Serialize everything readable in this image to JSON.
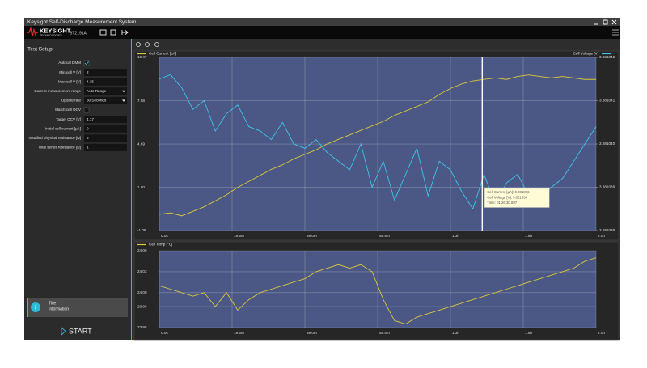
{
  "window": {
    "title": "Keysight Self-Discharge Measurement System",
    "logo": "KEYSIGHT",
    "logo_sub": "TECHNOLOGIES",
    "model": "BT2191A"
  },
  "setup": {
    "title": "Test Setup",
    "fields": [
      {
        "label": "Autocal DMM",
        "checked": true
      },
      {
        "label": "Min cell V [V]",
        "value": 2
      },
      {
        "label": "Max cell V [V]",
        "value": 4.35
      },
      {
        "label": "Current measurement range",
        "value": "Auto Range",
        "dropdown": true
      },
      {
        "label": "Update rate",
        "value": "60 Seconds",
        "dropdown": true
      },
      {
        "label": "Match cell OCV",
        "checked": false
      },
      {
        "label": "Target OCV [V]",
        "value": 4.17
      },
      {
        "label": "Initial cell current [µA]",
        "value": 0
      },
      {
        "label": "Installed physical resistance [Ω]",
        "value": 5
      },
      {
        "label": "Total series resistance [Ω]",
        "value": 1
      }
    ]
  },
  "info": {
    "title": "Title",
    "text": "Information"
  },
  "start_button": "START",
  "chart_data": [
    {
      "type": "line",
      "x": [
        0,
        3,
        6,
        9,
        12,
        15,
        18,
        21,
        24,
        27,
        30,
        33,
        36,
        39,
        42,
        45,
        48,
        51,
        54,
        57,
        60,
        63,
        66,
        69,
        72,
        75,
        78,
        81,
        84,
        87,
        90,
        93,
        96,
        99,
        102,
        105,
        108,
        111,
        114,
        117
      ],
      "xlim": [
        0,
        117
      ],
      "xticks": [
        {
          "value": 0,
          "label": "0.0s"
        },
        {
          "value": 19.5,
          "label": "19.5m"
        },
        {
          "value": 39,
          "label": "39.0m"
        },
        {
          "value": 58.5,
          "label": "58.5m"
        },
        {
          "value": 78,
          "label": "1.3h"
        },
        {
          "value": 97.5,
          "label": "1.6h"
        },
        {
          "value": 117,
          "label": "2.0h"
        }
      ],
      "ylim": [
        -1.08,
        10.47
      ],
      "yticks": [
        10.47,
        7.58,
        4.69,
        {
          "value": 1.8,
          "label": "1.80"
        },
        -1.08
      ],
      "y2lim": [
        3.881038,
        3.881042
      ],
      "y2ticks": [
        3.881042,
        3.881041,
        {
          "value": 3.88104,
          "label": "3.881040"
        },
        3.881039,
        3.881038
      ],
      "grid": true,
      "series": [
        {
          "name": "Cell Current [µA]",
          "color": "#d8c83a",
          "values": [
            0,
            0.1,
            -0.1,
            0.2,
            0.5,
            0.9,
            1.3,
            1.8,
            2.2,
            2.6,
            3.0,
            3.3,
            3.7,
            4.0,
            4.3,
            4.7,
            5.0,
            5.3,
            5.6,
            5.9,
            6.2,
            6.6,
            6.9,
            7.2,
            7.5,
            8.0,
            8.4,
            8.7,
            8.9,
            9.0,
            9.1,
            9.0,
            9.2,
            9.3,
            9.2,
            9.1,
            9.2,
            9.1,
            9.0,
            9.0
          ]
        },
        {
          "name": "Cell Voltage [V]",
          "color": "#3cc6e6",
          "axis": "y2",
          "values": [
            3.8810415,
            3.8810416,
            3.8810413,
            3.8810408,
            3.881041,
            3.8810403,
            3.8810407,
            3.8810409,
            3.8810404,
            3.8810403,
            3.8810401,
            3.8810405,
            3.88104,
            3.8810399,
            3.8810401,
            3.8810398,
            3.8810396,
            3.8810394,
            3.88104,
            3.881039,
            3.8810396,
            3.8810387,
            3.8810393,
            3.8810399,
            3.8810388,
            3.8810396,
            3.8810394,
            3.8810389,
            3.8810385,
            3.8810393,
            3.8810386,
            3.8810391,
            3.8810393,
            3.8810388,
            3.8810387,
            3.881039,
            3.8810392,
            3.8810396,
            3.88104,
            3.8810404
          ]
        }
      ],
      "cursor_x": 86.515,
      "annotations": [
        "Cell Current [µA]: 9.081896",
        "Cell Voltage [V]: 3.881039",
        "Time: 01:26:30.897"
      ]
    },
    {
      "type": "line",
      "x": [
        0,
        3,
        6,
        9,
        12,
        15,
        18,
        21,
        24,
        27,
        30,
        33,
        36,
        39,
        42,
        45,
        48,
        51,
        54,
        57,
        60,
        63,
        66,
        69,
        72,
        75,
        78,
        81,
        84,
        87,
        90,
        93,
        96,
        99,
        102,
        105,
        108,
        111,
        114,
        117
      ],
      "xlim": [
        0,
        117
      ],
      "xticks": [
        {
          "value": 0,
          "label": "0.0s"
        },
        {
          "value": 19.5,
          "label": "19.5m"
        },
        {
          "value": 39,
          "label": "39.0m"
        },
        {
          "value": 58.5,
          "label": "58.5m"
        },
        {
          "value": 78,
          "label": "1.3h"
        },
        {
          "value": 97.5,
          "label": "1.6h"
        },
        {
          "value": 117,
          "label": "2.0h"
        }
      ],
      "ylim": [
        23.95,
        24.06
      ],
      "yticks": [
        24.06,
        24.03,
        {
          "value": 24,
          "label": "24.00"
        },
        23.98,
        23.95
      ],
      "grid": true,
      "series": [
        {
          "name": "Cell Temp [°C]",
          "color": "#d8c83a",
          "values": [
            24.01,
            24.005,
            24.0,
            23.995,
            24.0,
            23.98,
            24.0,
            23.975,
            23.99,
            24.0,
            24.005,
            24.01,
            24.015,
            24.02,
            24.03,
            24.035,
            24.04,
            24.035,
            24.04,
            24.03,
            23.99,
            23.96,
            23.955,
            23.965,
            23.97,
            23.975,
            23.98,
            23.985,
            23.99,
            23.995,
            24.0,
            24.005,
            24.01,
            24.015,
            24.02,
            24.025,
            24.03,
            24.035,
            24.045,
            24.05
          ]
        }
      ]
    }
  ]
}
